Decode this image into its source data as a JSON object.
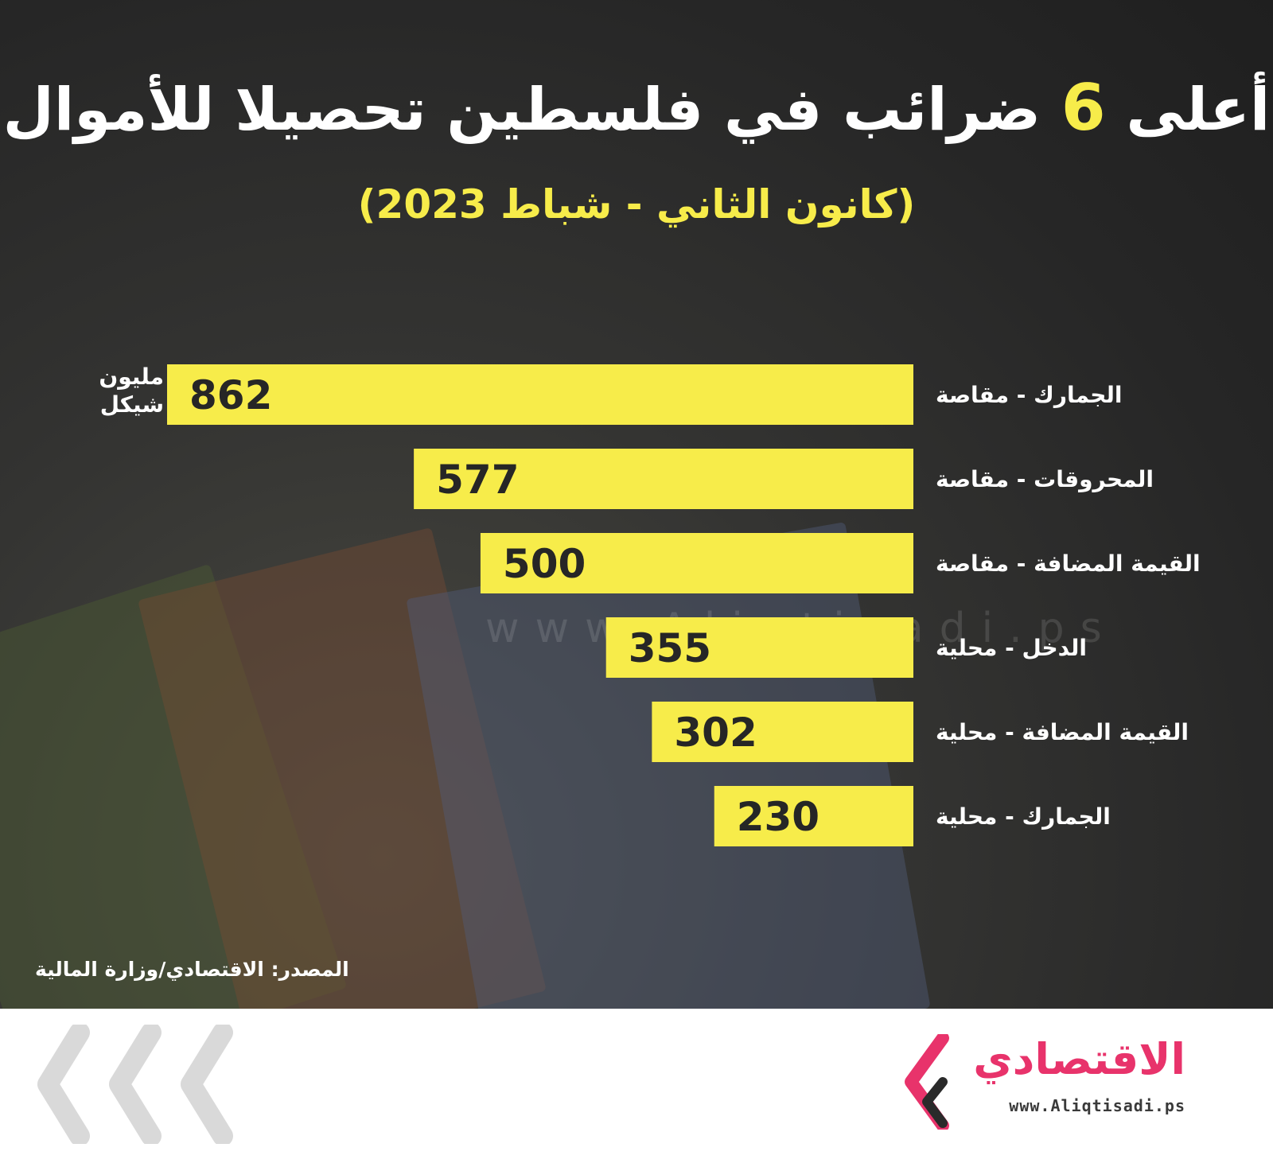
{
  "title": {
    "part1": "أعلى",
    "number": "6",
    "part2": "ضرائب في فلسطين تحصيلا للأموال"
  },
  "subtitle": "(كانون الثاني - شباط 2023)",
  "unit_label": {
    "line1": "مليون",
    "line2": "شيكل"
  },
  "watermark_text": "www.Aliqtisadi.ps",
  "source": "المصدر: الاقتصادي/وزارة المالية",
  "brand": {
    "name": "الاقتصادي",
    "url": "www.Aliqtisadi.ps"
  },
  "colors": {
    "bar": "#f7ec4a",
    "background": "#262626",
    "brand_pink": "#e8336b"
  },
  "chart_data": {
    "type": "bar",
    "orientation": "horizontal",
    "categories": [
      "الجمارك - مقاصة",
      "المحروقات - مقاصة",
      "القيمة المضافة - مقاصة",
      "الدخل - محلية",
      "القيمة المضافة - محلية",
      "الجمارك - محلية"
    ],
    "values": [
      862,
      577,
      500,
      355,
      302,
      230
    ],
    "value_labels": [
      "862",
      "577",
      "500",
      "355",
      "302",
      "230"
    ],
    "xlim": [
      0,
      862
    ]
  }
}
